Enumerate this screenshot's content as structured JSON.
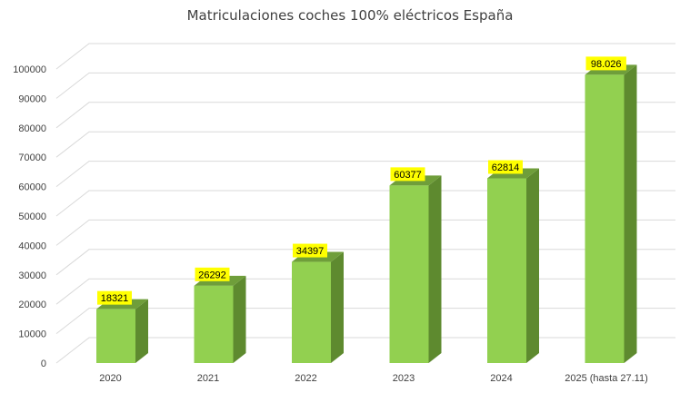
{
  "chart_data": {
    "type": "bar",
    "title": "Matriculaciones coches 100% eléctricos España",
    "categories": [
      "2020",
      "2021",
      "2022",
      "2023",
      "2024",
      "2025 (hasta 27.11)"
    ],
    "values": [
      18321,
      26292,
      34397,
      60377,
      62814,
      98026
    ],
    "data_labels": [
      "18321",
      "26292",
      "34397",
      "60377",
      "62814",
      "98.026"
    ],
    "ylim": [
      0,
      100000
    ],
    "yticks": [
      "0",
      "10000",
      "20000",
      "30000",
      "40000",
      "50000",
      "60000",
      "70000",
      "80000",
      "90000",
      "100000"
    ],
    "grid": true,
    "legend": "none",
    "style": "3d-column"
  },
  "colors": {
    "bar_front": "#92d050",
    "bar_side": "#5e8a2f",
    "bar_top": "#6f9e3a",
    "label_bg": "#ffff00",
    "grid": "#d9d9d9"
  }
}
